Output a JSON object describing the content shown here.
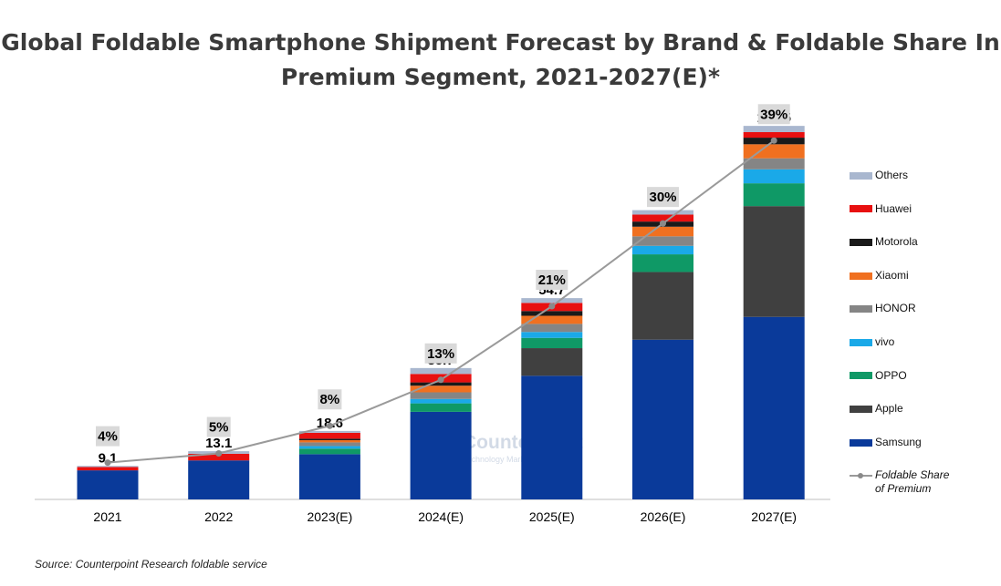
{
  "title_line1": "Global Foldable Smartphone Shipment Forecast by Brand & Foldable Share In",
  "title_line2": "Premium Segment, 2021-2027(E)*",
  "source": "Source: Counterpoint Research foldable service",
  "watermark": {
    "name": "Counterpoint",
    "tagline": "Technology Market Research"
  },
  "colors": {
    "Samsung": "#0a3a9a",
    "Apple": "#404040",
    "OPPO": "#0f9966",
    "vivo": "#1aa9e8",
    "HONOR": "#858585",
    "Xiaomi": "#f07020",
    "Motorola": "#1a1a1a",
    "Huawei": "#e81010",
    "Others": "#a9b7cf",
    "line": "#9a9a9a",
    "label_box": "#d9d9d9"
  },
  "chart_data": {
    "type": "bar",
    "stacked": true,
    "categories": [
      "2021",
      "2022",
      "2023(E)",
      "2024(E)",
      "2025(E)",
      "2026(E)",
      "2027(E)"
    ],
    "totals": [
      "9.1",
      "13.1",
      "18.6",
      "35.7",
      "54.7",
      "78.6",
      "101.5"
    ],
    "series": [
      {
        "name": "Samsung",
        "values": [
          7.9,
          10.6,
          12.3,
          23.8,
          33.6,
          43.4,
          49.6
        ]
      },
      {
        "name": "Apple",
        "values": [
          0,
          0,
          0,
          0,
          7.5,
          18.4,
          30.1
        ]
      },
      {
        "name": "OPPO",
        "values": [
          0,
          0,
          1.5,
          2.3,
          2.8,
          4.8,
          6.2
        ]
      },
      {
        "name": "vivo",
        "values": [
          0,
          0,
          0.7,
          1.2,
          1.6,
          2.3,
          3.8
        ]
      },
      {
        "name": "HONOR",
        "values": [
          0,
          0,
          1.0,
          1.8,
          2.2,
          2.6,
          3.0
        ]
      },
      {
        "name": "Xiaomi",
        "values": [
          0,
          0,
          0.6,
          1.8,
          2.2,
          2.6,
          3.8
        ]
      },
      {
        "name": "Motorola",
        "values": [
          0,
          0,
          0.4,
          0.9,
          1.3,
          1.4,
          1.8
        ]
      },
      {
        "name": "Huawei",
        "values": [
          0.9,
          1.8,
          1.6,
          2.3,
          2.2,
          1.9,
          1.5
        ]
      },
      {
        "name": "Others",
        "values": [
          0.3,
          0.7,
          0.5,
          1.6,
          1.3,
          1.2,
          1.7
        ]
      }
    ],
    "line": {
      "name": "Foldable Share of Premium",
      "values": [
        4,
        5,
        8,
        13,
        21,
        30,
        39
      ],
      "labels": [
        "4%",
        "5%",
        "8%",
        "13%",
        "21%",
        "30%",
        "39%"
      ]
    },
    "ylim": [
      0,
      105
    ],
    "share_ylim": [
      0,
      42
    ],
    "legend_position": "right",
    "legend_order": [
      "Others",
      "Huawei",
      "Motorola",
      "Xiaomi",
      "HONOR",
      "vivo",
      "OPPO",
      "Apple",
      "Samsung",
      "Foldable Share of Premium"
    ],
    "legend_line_label": [
      "Foldable Share",
      "of Premium"
    ],
    "grid": false
  }
}
